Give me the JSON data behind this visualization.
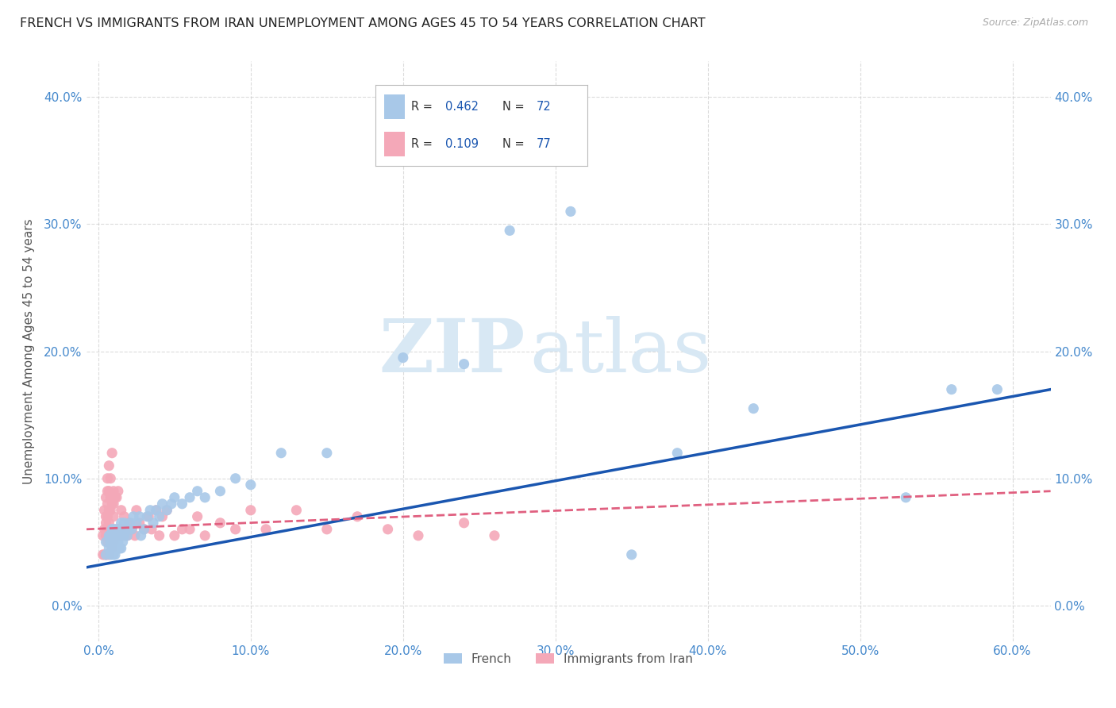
{
  "title": "FRENCH VS IMMIGRANTS FROM IRAN UNEMPLOYMENT AMONG AGES 45 TO 54 YEARS CORRELATION CHART",
  "source": "Source: ZipAtlas.com",
  "ylabel": "Unemployment Among Ages 45 to 54 years",
  "xlabel_ticks": [
    "0.0%",
    "10.0%",
    "20.0%",
    "30.0%",
    "40.0%",
    "50.0%",
    "60.0%"
  ],
  "xlabel_vals": [
    0.0,
    0.1,
    0.2,
    0.3,
    0.4,
    0.5,
    0.6
  ],
  "ylabel_ticks": [
    "0.0%",
    "10.0%",
    "20.0%",
    "30.0%",
    "40.0%"
  ],
  "ylabel_vals": [
    0.0,
    0.1,
    0.2,
    0.3,
    0.4
  ],
  "xlim": [
    -0.008,
    0.625
  ],
  "ylim": [
    -0.028,
    0.428
  ],
  "french_R": 0.462,
  "french_N": 72,
  "iran_R": 0.109,
  "iran_N": 77,
  "french_color": "#a8c8e8",
  "iran_color": "#f4a8b8",
  "french_line_color": "#1a56b0",
  "iran_line_color": "#e06080",
  "legend_label_french": "French",
  "legend_label_iran": "Immigrants from Iran",
  "watermark_zip": "ZIP",
  "watermark_atlas": "atlas",
  "background_color": "#ffffff",
  "grid_color": "#cccccc",
  "title_color": "#222222",
  "axis_label_color": "#555555",
  "tick_color": "#4488cc",
  "french_line_start_y": 0.03,
  "french_line_end_y": 0.17,
  "iran_line_start_y": 0.06,
  "iran_line_end_y": 0.09,
  "french_scatter": {
    "x": [
      0.005,
      0.005,
      0.007,
      0.007,
      0.008,
      0.008,
      0.008,
      0.009,
      0.009,
      0.009,
      0.01,
      0.01,
      0.01,
      0.01,
      0.01,
      0.01,
      0.011,
      0.011,
      0.011,
      0.012,
      0.012,
      0.012,
      0.013,
      0.013,
      0.013,
      0.014,
      0.014,
      0.015,
      0.015,
      0.015,
      0.016,
      0.016,
      0.017,
      0.017,
      0.018,
      0.019,
      0.02,
      0.021,
      0.022,
      0.023,
      0.025,
      0.027,
      0.028,
      0.03,
      0.032,
      0.034,
      0.036,
      0.038,
      0.04,
      0.042,
      0.045,
      0.048,
      0.05,
      0.055,
      0.06,
      0.065,
      0.07,
      0.08,
      0.09,
      0.1,
      0.12,
      0.15,
      0.2,
      0.24,
      0.27,
      0.31,
      0.35,
      0.38,
      0.43,
      0.53,
      0.56,
      0.59
    ],
    "y": [
      0.04,
      0.05,
      0.045,
      0.055,
      0.04,
      0.05,
      0.055,
      0.04,
      0.045,
      0.06,
      0.04,
      0.045,
      0.05,
      0.05,
      0.055,
      0.06,
      0.04,
      0.045,
      0.055,
      0.045,
      0.05,
      0.06,
      0.045,
      0.05,
      0.06,
      0.045,
      0.06,
      0.045,
      0.055,
      0.065,
      0.05,
      0.06,
      0.055,
      0.065,
      0.06,
      0.055,
      0.06,
      0.065,
      0.06,
      0.07,
      0.065,
      0.07,
      0.055,
      0.06,
      0.07,
      0.075,
      0.065,
      0.075,
      0.07,
      0.08,
      0.075,
      0.08,
      0.085,
      0.08,
      0.085,
      0.09,
      0.085,
      0.09,
      0.1,
      0.095,
      0.12,
      0.12,
      0.195,
      0.19,
      0.295,
      0.31,
      0.04,
      0.12,
      0.155,
      0.085,
      0.17,
      0.17
    ]
  },
  "iran_scatter": {
    "x": [
      0.003,
      0.003,
      0.004,
      0.004,
      0.004,
      0.005,
      0.005,
      0.005,
      0.005,
      0.005,
      0.006,
      0.006,
      0.006,
      0.006,
      0.006,
      0.006,
      0.006,
      0.007,
      0.007,
      0.007,
      0.007,
      0.007,
      0.007,
      0.008,
      0.008,
      0.008,
      0.008,
      0.008,
      0.009,
      0.009,
      0.009,
      0.009,
      0.01,
      0.01,
      0.01,
      0.01,
      0.011,
      0.011,
      0.012,
      0.012,
      0.013,
      0.013,
      0.014,
      0.015,
      0.015,
      0.016,
      0.017,
      0.018,
      0.019,
      0.02,
      0.022,
      0.024,
      0.025,
      0.027,
      0.03,
      0.033,
      0.035,
      0.038,
      0.04,
      0.042,
      0.045,
      0.05,
      0.055,
      0.06,
      0.065,
      0.07,
      0.08,
      0.09,
      0.1,
      0.11,
      0.13,
      0.15,
      0.17,
      0.19,
      0.21,
      0.24,
      0.26
    ],
    "y": [
      0.04,
      0.055,
      0.04,
      0.06,
      0.075,
      0.04,
      0.055,
      0.065,
      0.07,
      0.085,
      0.04,
      0.05,
      0.06,
      0.07,
      0.08,
      0.09,
      0.1,
      0.04,
      0.055,
      0.065,
      0.075,
      0.09,
      0.11,
      0.05,
      0.06,
      0.075,
      0.085,
      0.1,
      0.045,
      0.06,
      0.08,
      0.12,
      0.05,
      0.07,
      0.08,
      0.09,
      0.06,
      0.085,
      0.055,
      0.085,
      0.06,
      0.09,
      0.06,
      0.055,
      0.075,
      0.06,
      0.07,
      0.06,
      0.055,
      0.065,
      0.06,
      0.055,
      0.075,
      0.065,
      0.06,
      0.07,
      0.06,
      0.075,
      0.055,
      0.07,
      0.075,
      0.055,
      0.06,
      0.06,
      0.07,
      0.055,
      0.065,
      0.06,
      0.075,
      0.06,
      0.075,
      0.06,
      0.07,
      0.06,
      0.055,
      0.065,
      0.055
    ]
  }
}
